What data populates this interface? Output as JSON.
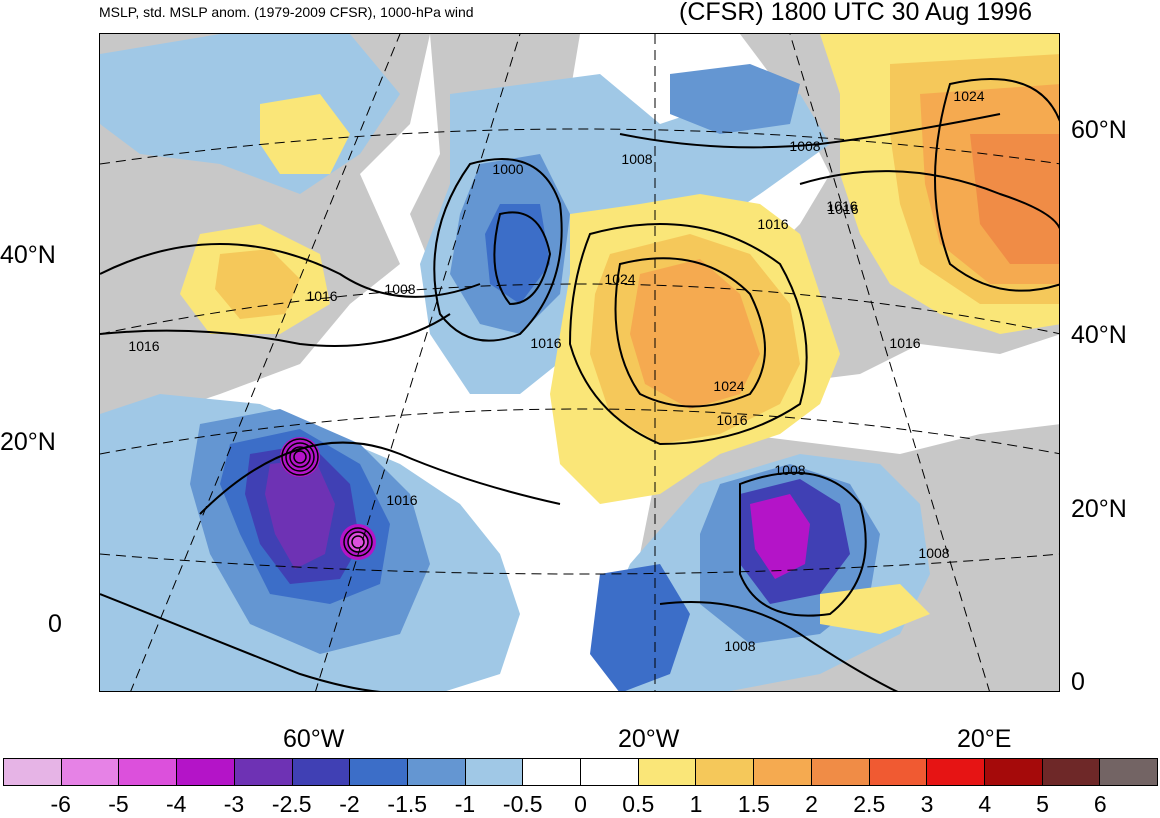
{
  "header": {
    "left_title": "MSLP, std. MSLP anom. (1979-2009 CFSR), 1000-hPa wind",
    "right_title": "(CFSR) 1800 UTC 30 Aug 1996"
  },
  "axes": {
    "left_lat_labels": [
      "40°N",
      "20°N",
      "0"
    ],
    "right_lat_labels": [
      "60°N",
      "40°N",
      "20°N",
      "0"
    ],
    "bottom_lon_labels": [
      "60°W",
      "20°W",
      "20°E"
    ]
  },
  "contour_labels": [
    "1024",
    "1008",
    "1000",
    "1008",
    "1016",
    "1016",
    "1016",
    "1008",
    "1016",
    "1016",
    "1024",
    "1016",
    "1024",
    "1016",
    "1016",
    "1008",
    "1016",
    "1008",
    "1008"
  ],
  "colorbar": {
    "colors": [
      "#e6b4e6",
      "#e682e6",
      "#dc50dc",
      "#b414c8",
      "#6e32b4",
      "#4040b4",
      "#3c6ec8",
      "#6496d2",
      "#a0c8e6",
      "#ffffff",
      "#ffffff",
      "#fae678",
      "#f5c85a",
      "#f5aa50",
      "#f08c46",
      "#f05a32",
      "#e61414",
      "#a50a0a",
      "#6e2828",
      "#736464"
    ],
    "labels": [
      "-6",
      "-5",
      "-4",
      "-3",
      "-2.5",
      "-2",
      "-1.5",
      "-1",
      "-0.5",
      "0",
      "0.5",
      "1",
      "1.5",
      "2",
      "2.5",
      "3",
      "4",
      "5",
      "6"
    ]
  },
  "colors": {
    "land": "#c8c8c8",
    "ocean": "#ffffff",
    "isobar": "#000000"
  }
}
